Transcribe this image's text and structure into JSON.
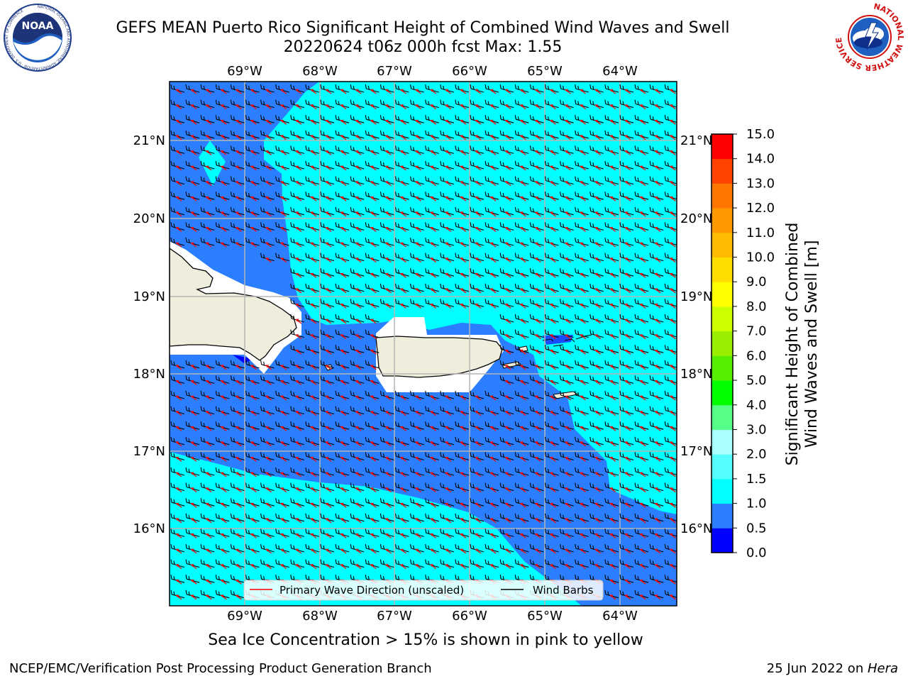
{
  "title_line1": "GEFS MEAN Puerto Rico Significant Height of Combined Wind Waves and Swell",
  "title_line2": "20220624 t06z 000h fcst   Max: 1.55",
  "caption": "Sea Ice Concentration > 15% is shown in pink to yellow",
  "footer_left": "NCEP/EMC/Verification Post Processing Product Generation Branch",
  "footer_right_prefix": "25 Jun 2022 on ",
  "footer_right_host": "Hera",
  "logos": {
    "noaa_text": "NOAA",
    "noaa_ring": "NATIONAL OCEANIC AND ATMOSPHERIC ADMINISTRATION · U.S. DEPARTMENT OF COMMERCE",
    "nws_ring": "NATIONAL WEATHER SERVICE"
  },
  "map": {
    "lon_labels": [
      "69°W",
      "68°W",
      "67°W",
      "66°W",
      "65°W",
      "64°W"
    ],
    "lat_labels": [
      "21°N",
      "20°N",
      "19°N",
      "18°N",
      "17°N",
      "16°N"
    ],
    "legend": {
      "primary": "Primary Wave Direction (unscaled)",
      "barbs": "Wind Barbs"
    }
  },
  "colorbar": {
    "label_line1": "Significant Height of Combined",
    "label_line2": "Wind Waves and Swell [m]",
    "ticks": [
      "0.0",
      "0.5",
      "1.0",
      "1.5",
      "2.0",
      "3.0",
      "4.0",
      "5.0",
      "6.0",
      "7.0",
      "8.0",
      "9.0",
      "10.0",
      "11.0",
      "12.0",
      "13.0",
      "14.0",
      "15.0"
    ],
    "colors": [
      "#0000ff",
      "#2b7fff",
      "#00ffff",
      "#55ffff",
      "#aaffff",
      "#55ff88",
      "#00ff00",
      "#55ee00",
      "#99ee00",
      "#ccff00",
      "#ffff00",
      "#ffdd00",
      "#ffbb00",
      "#ff9900",
      "#ff7700",
      "#ff4400",
      "#ff0000"
    ]
  },
  "palette": {
    "land": "#efeedc",
    "cyan_sea": "#00ffff",
    "blue_sea": "#2b7fff",
    "deep_sea": "#0000ff",
    "arrow": "#ff0000",
    "barb": "#000000"
  }
}
